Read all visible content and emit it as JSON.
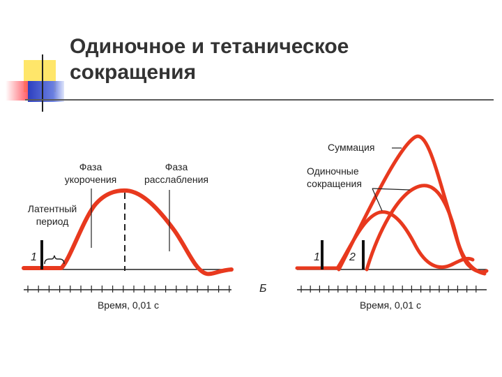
{
  "title": {
    "line1": "Одиночное и тетаническое",
    "line2": "сокращения"
  },
  "colors": {
    "curve": "#e8391e",
    "bar_yellow": "#ffe66a",
    "bar_red": "#ff3a4a",
    "bar_blue": "#2d3fc0",
    "title_text": "#333333"
  },
  "left_panel": {
    "label_phase_shortening": [
      "Фаза",
      "укорочения"
    ],
    "label_phase_relaxation": [
      "Фаза",
      "расслабления"
    ],
    "label_latent_period": [
      "Латентный",
      "период"
    ],
    "stimulus_marker": "1",
    "x_axis_label": "Время, 0,01 с"
  },
  "right_panel": {
    "label_summation": "Суммация",
    "label_single_contractions": [
      "Одиночные",
      "сокращения"
    ],
    "stimulus_marker_1": "1",
    "stimulus_marker_2": "2",
    "x_axis_label": "Время, 0,01 с",
    "panel_letter": "Б"
  }
}
